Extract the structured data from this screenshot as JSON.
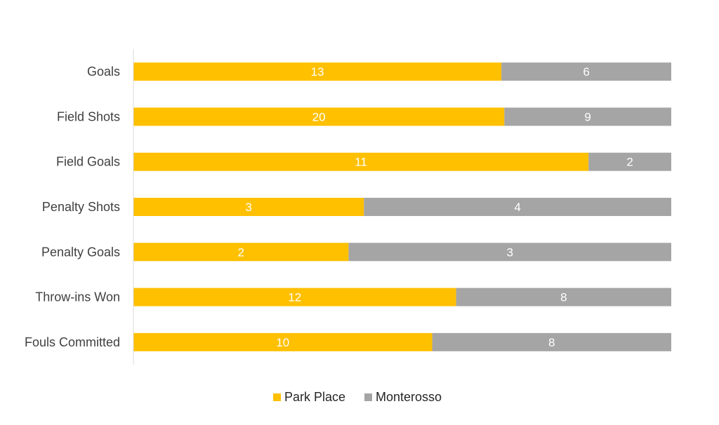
{
  "chart_data": {
    "type": "bar",
    "orientation": "horizontal",
    "stacking": "percent",
    "categories": [
      "Goals",
      "Field Shots",
      "Field Goals",
      "Penalty Shots",
      "Penalty Goals",
      "Throw-ins Won",
      "Fouls Committed"
    ],
    "series": [
      {
        "name": "Park Place",
        "values": [
          13,
          20,
          11,
          3,
          2,
          12,
          10
        ],
        "color": "#FFC000"
      },
      {
        "name": "Monterosso",
        "values": [
          6,
          9,
          2,
          4,
          3,
          8,
          8
        ],
        "color": "#A5A5A5"
      }
    ],
    "title": "",
    "xlabel": "",
    "ylabel": "",
    "xlim": [
      0,
      1
    ],
    "grid": false,
    "legend": "bottom",
    "data_labels": true,
    "axis_line_color": "#D9D9D9"
  }
}
